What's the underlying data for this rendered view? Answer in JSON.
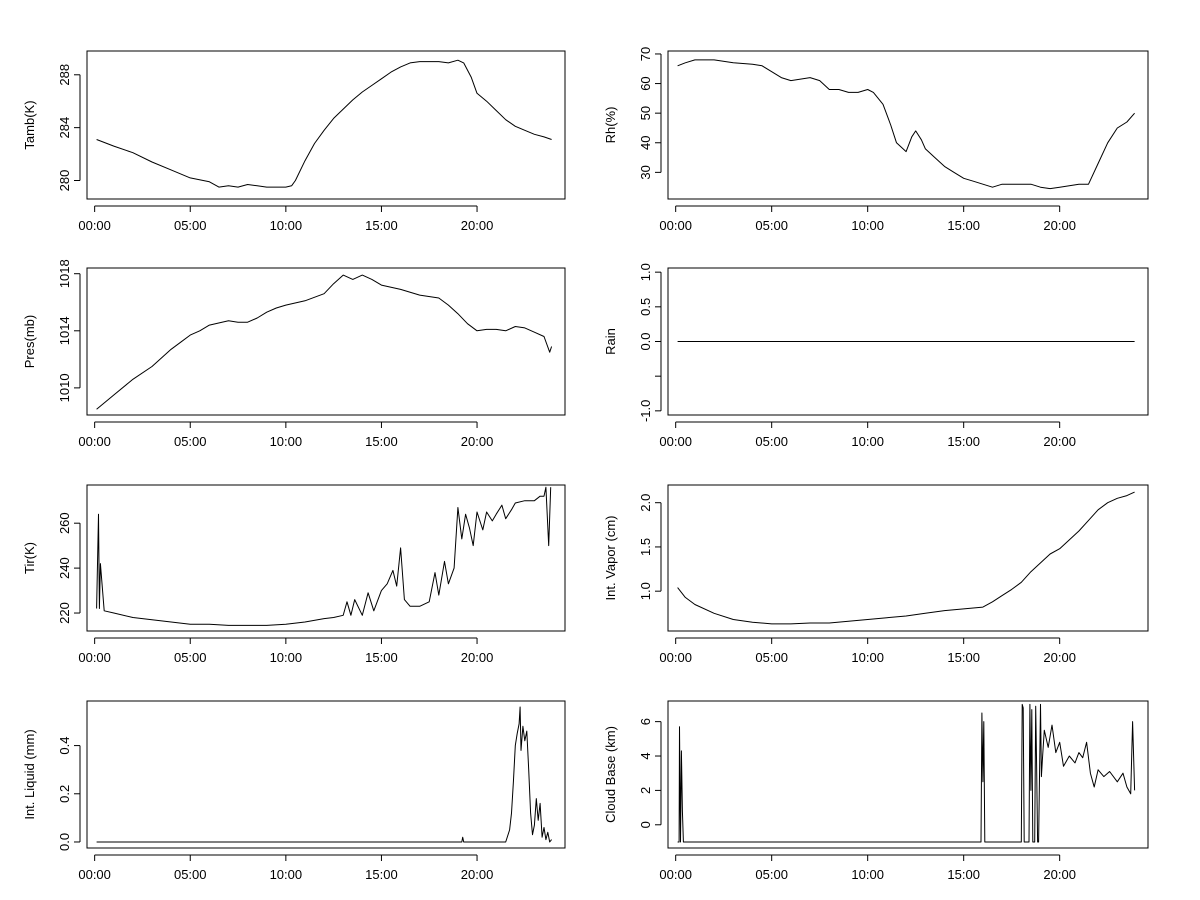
{
  "chart_data": [
    {
      "type": "line",
      "ylabel": "Tamb(K)",
      "x_ticks": [
        "00:00",
        "05:00",
        "10:00",
        "15:00",
        "20:00"
      ],
      "x_tick_hours": [
        0,
        5,
        10,
        15,
        20
      ],
      "y_ticks": [
        280,
        284,
        288
      ],
      "xlim": [
        -0.4,
        24.6
      ],
      "ylim": [
        278.6,
        289.8
      ],
      "series": [
        {
          "x": [
            0.1,
            1,
            2,
            3,
            4,
            5,
            6,
            6.5,
            7,
            7.5,
            8,
            8.5,
            9,
            9.5,
            10,
            10.3,
            10.5,
            11,
            11.5,
            12,
            12.5,
            13,
            13.5,
            14,
            14.5,
            15,
            15.5,
            16,
            16.5,
            17,
            17.5,
            18,
            18.5,
            19,
            19.3,
            19.7,
            20,
            20.5,
            21,
            21.5,
            22,
            22.5,
            23,
            23.5,
            23.9
          ],
          "y": [
            283.1,
            282.6,
            282.1,
            281.4,
            280.8,
            280.2,
            279.9,
            279.5,
            279.6,
            279.5,
            279.7,
            279.6,
            279.5,
            279.5,
            279.5,
            279.6,
            280.0,
            281.5,
            282.8,
            283.8,
            284.7,
            285.4,
            286.1,
            286.7,
            287.2,
            287.7,
            288.2,
            288.6,
            288.9,
            289.0,
            289.0,
            289.0,
            288.9,
            289.1,
            288.9,
            287.8,
            286.6,
            286.0,
            285.3,
            284.6,
            284.1,
            283.8,
            283.5,
            283.3,
            283.1
          ]
        }
      ]
    },
    {
      "type": "line",
      "ylabel": "Rh(%)",
      "x_ticks": [
        "00:00",
        "05:00",
        "10:00",
        "15:00",
        "20:00"
      ],
      "x_tick_hours": [
        0,
        5,
        10,
        15,
        20
      ],
      "y_ticks": [
        30,
        40,
        50,
        60,
        70
      ],
      "xlim": [
        -0.4,
        24.6
      ],
      "ylim": [
        21,
        71
      ],
      "series": [
        {
          "x": [
            0.1,
            0.5,
            1,
            1.5,
            2,
            3,
            4,
            4.5,
            5,
            5.5,
            6,
            7,
            7.5,
            8,
            8.5,
            9,
            9.5,
            10,
            10.3,
            10.8,
            11.2,
            11.5,
            12,
            12.3,
            12.5,
            12.8,
            13,
            13.5,
            14,
            14.5,
            15,
            15.5,
            16,
            16.5,
            17,
            17.5,
            18,
            18.5,
            19,
            19.5,
            20,
            20.5,
            21,
            21.5,
            22,
            22.5,
            23,
            23.5,
            23.9
          ],
          "y": [
            66,
            67,
            68,
            68,
            68,
            67,
            66.5,
            66,
            64,
            62,
            61,
            62,
            61,
            58,
            58,
            57,
            57,
            58,
            57,
            53,
            46,
            40,
            37,
            42,
            44,
            41,
            38,
            35,
            32,
            30,
            28,
            27,
            26,
            25,
            26,
            26,
            26,
            26,
            25,
            24.5,
            25,
            25.5,
            26,
            26,
            33,
            40,
            45,
            47,
            50
          ]
        }
      ]
    },
    {
      "type": "line",
      "ylabel": "Pres(mb)",
      "x_ticks": [
        "00:00",
        "05:00",
        "10:00",
        "15:00",
        "20:00"
      ],
      "x_tick_hours": [
        0,
        5,
        10,
        15,
        20
      ],
      "y_ticks": [
        1010,
        1014,
        1018
      ],
      "xlim": [
        -0.4,
        24.6
      ],
      "ylim": [
        1008.1,
        1018.4
      ],
      "series": [
        {
          "x": [
            0.1,
            1,
            2,
            3,
            4,
            4.5,
            5,
            5.5,
            6,
            7,
            7.5,
            8,
            8.5,
            9,
            9.5,
            10,
            11,
            12,
            12.5,
            13,
            13.5,
            14,
            14.5,
            15,
            16,
            17,
            18,
            18.5,
            19,
            19.5,
            20,
            20.5,
            21,
            21.5,
            22,
            22.5,
            23,
            23.5,
            23.8,
            23.9
          ],
          "y": [
            1008.5,
            1009.5,
            1010.6,
            1011.5,
            1012.7,
            1013.2,
            1013.7,
            1014.0,
            1014.4,
            1014.7,
            1014.6,
            1014.6,
            1014.9,
            1015.3,
            1015.6,
            1015.8,
            1016.1,
            1016.6,
            1017.3,
            1017.9,
            1017.6,
            1017.9,
            1017.6,
            1017.2,
            1016.9,
            1016.5,
            1016.3,
            1015.8,
            1015.2,
            1014.5,
            1014.0,
            1014.1,
            1014.1,
            1014.0,
            1014.3,
            1014.2,
            1013.9,
            1013.6,
            1012.5,
            1012.9
          ]
        }
      ]
    },
    {
      "type": "line",
      "ylabel": "Rain",
      "x_ticks": [
        "00:00",
        "05:00",
        "10:00",
        "15:00",
        "20:00"
      ],
      "x_tick_hours": [
        0,
        5,
        10,
        15,
        20
      ],
      "y_ticks": [
        -1.0,
        -0.5,
        0.0,
        0.5,
        1.0
      ],
      "y_tick_labels": [
        "-1.0",
        "",
        "0.0",
        "0.5",
        "1.0"
      ],
      "xlim": [
        -0.4,
        24.6
      ],
      "ylim": [
        -1.06,
        1.06
      ],
      "series": [
        {
          "x": [
            0.1,
            23.9
          ],
          "y": [
            0,
            0
          ]
        }
      ]
    },
    {
      "type": "line",
      "ylabel": "Tir(K)",
      "x_ticks": [
        "00:00",
        "05:00",
        "10:00",
        "15:00",
        "20:00"
      ],
      "x_tick_hours": [
        0,
        5,
        10,
        15,
        20
      ],
      "y_ticks": [
        220,
        240,
        260
      ],
      "xlim": [
        -0.4,
        24.6
      ],
      "ylim": [
        212,
        277
      ],
      "series": [
        {
          "x": [
            0.1,
            0.2,
            0.25,
            0.3,
            0.5,
            1,
            2,
            3,
            4,
            5,
            6,
            7,
            8,
            9,
            10,
            11,
            12,
            12.5,
            13,
            13.2,
            13.4,
            13.6,
            14,
            14.3,
            14.6,
            15,
            15.3,
            15.6,
            15.8,
            16,
            16.2,
            16.5,
            17,
            17.5,
            17.8,
            18,
            18.3,
            18.5,
            18.8,
            19,
            19.2,
            19.4,
            19.6,
            19.8,
            20,
            20.3,
            20.5,
            20.8,
            21,
            21.3,
            21.5,
            21.8,
            22,
            22.5,
            23,
            23.3,
            23.5,
            23.6,
            23.75,
            23.85
          ],
          "y": [
            222,
            264,
            222,
            242,
            221,
            220,
            218,
            217,
            216,
            215,
            215,
            214.5,
            214.5,
            214.5,
            215,
            216,
            217.5,
            218,
            219,
            225,
            219,
            226,
            219,
            229,
            221,
            230,
            233,
            239,
            232,
            249,
            226,
            223,
            223,
            225,
            238,
            228,
            243,
            233,
            240,
            267,
            253,
            264,
            258,
            250,
            265,
            257,
            265,
            261,
            264,
            268,
            262,
            266,
            269,
            270,
            270,
            272,
            272,
            276,
            250,
            276
          ]
        }
      ]
    },
    {
      "type": "line",
      "ylabel": "Int. Vapor (cm)",
      "x_ticks": [
        "00:00",
        "05:00",
        "10:00",
        "15:00",
        "20:00"
      ],
      "x_tick_hours": [
        0,
        5,
        10,
        15,
        20
      ],
      "y_ticks": [
        1.0,
        1.5,
        2.0
      ],
      "y_tick_labels": [
        "1.0",
        "1.5",
        "2.0"
      ],
      "xlim": [
        -0.4,
        24.6
      ],
      "ylim": [
        0.55,
        2.2
      ],
      "series": [
        {
          "x": [
            0.1,
            0.5,
            1,
            2,
            3,
            4,
            5,
            6,
            7,
            8,
            9,
            10,
            11,
            12,
            13,
            14,
            15,
            16,
            16.5,
            17,
            17.5,
            18,
            18.5,
            19,
            19.5,
            20,
            20.5,
            21,
            21.5,
            22,
            22.5,
            23,
            23.5,
            23.9
          ],
          "y": [
            1.04,
            0.93,
            0.85,
            0.75,
            0.68,
            0.65,
            0.63,
            0.63,
            0.64,
            0.64,
            0.66,
            0.68,
            0.7,
            0.72,
            0.75,
            0.78,
            0.8,
            0.82,
            0.88,
            0.95,
            1.02,
            1.1,
            1.22,
            1.32,
            1.42,
            1.48,
            1.58,
            1.68,
            1.8,
            1.92,
            2.0,
            2.05,
            2.08,
            2.12
          ]
        }
      ]
    },
    {
      "type": "line",
      "ylabel": "Int. Liquid (mm)",
      "x_ticks": [
        "00:00",
        "05:00",
        "10:00",
        "15:00",
        "20:00"
      ],
      "x_tick_hours": [
        0,
        5,
        10,
        15,
        20
      ],
      "y_ticks": [
        0.0,
        0.2,
        0.4
      ],
      "y_tick_labels": [
        "0.0",
        "0.2",
        "0.4"
      ],
      "xlim": [
        -0.4,
        24.6
      ],
      "ylim": [
        -0.025,
        0.585
      ],
      "series": [
        {
          "x": [
            0.1,
            19.2,
            19.25,
            19.3,
            21.5,
            21.7,
            21.8,
            21.9,
            22.0,
            22.1,
            22.2,
            22.25,
            22.3,
            22.4,
            22.5,
            22.6,
            22.7,
            22.8,
            22.9,
            23.0,
            23.1,
            23.2,
            23.3,
            23.4,
            23.5,
            23.6,
            23.7,
            23.8,
            23.9
          ],
          "y": [
            0,
            0,
            0.02,
            0,
            0,
            0.05,
            0.12,
            0.25,
            0.4,
            0.45,
            0.49,
            0.56,
            0.38,
            0.48,
            0.42,
            0.46,
            0.3,
            0.12,
            0.03,
            0.07,
            0.18,
            0.09,
            0.16,
            0.02,
            0.06,
            0.01,
            0.04,
            0.0,
            0.01
          ]
        }
      ]
    },
    {
      "type": "line",
      "ylabel": "Cloud Base (km)",
      "x_ticks": [
        "00:00",
        "05:00",
        "10:00",
        "15:00",
        "20:00"
      ],
      "x_tick_hours": [
        0,
        5,
        10,
        15,
        20
      ],
      "y_ticks": [
        0,
        2,
        4,
        6
      ],
      "xlim": [
        -0.4,
        24.6
      ],
      "ylim": [
        -1.35,
        7.2
      ],
      "series": [
        {
          "x": [
            0.1,
            0.18,
            0.2,
            0.25,
            0.3,
            0.35,
            0.4,
            15.9,
            15.95,
            16.0,
            16.05,
            16.1,
            18.0,
            18.05,
            18.1,
            18.15,
            18.4,
            18.45,
            18.5,
            18.55,
            18.6,
            18.7,
            18.75,
            18.8,
            18.85,
            18.9,
            19.0,
            19.05,
            19.1,
            19.2,
            19.4,
            19.6,
            19.8,
            20.0,
            20.2,
            20.5,
            20.8,
            21.0,
            21.2,
            21.4,
            21.6,
            21.8,
            22.0,
            22.3,
            22.6,
            23.0,
            23.3,
            23.5,
            23.6,
            23.7,
            23.8,
            23.9
          ],
          "y": [
            -1,
            -1,
            5.7,
            -1,
            4.3,
            0.8,
            -1,
            -1,
            6.5,
            2.5,
            6.0,
            -1,
            -1,
            7.0,
            6.8,
            -1,
            -1,
            7.0,
            2.0,
            6.7,
            -1,
            -1,
            6.9,
            3.5,
            -1,
            -1,
            7.0,
            2.8,
            3.8,
            5.5,
            4.5,
            5.8,
            4.2,
            4.8,
            3.4,
            4.0,
            3.6,
            4.2,
            3.9,
            4.8,
            3.0,
            2.2,
            3.2,
            2.8,
            3.1,
            2.5,
            3.0,
            2.2,
            2.0,
            1.8,
            6.0,
            2.0
          ]
        }
      ]
    }
  ]
}
